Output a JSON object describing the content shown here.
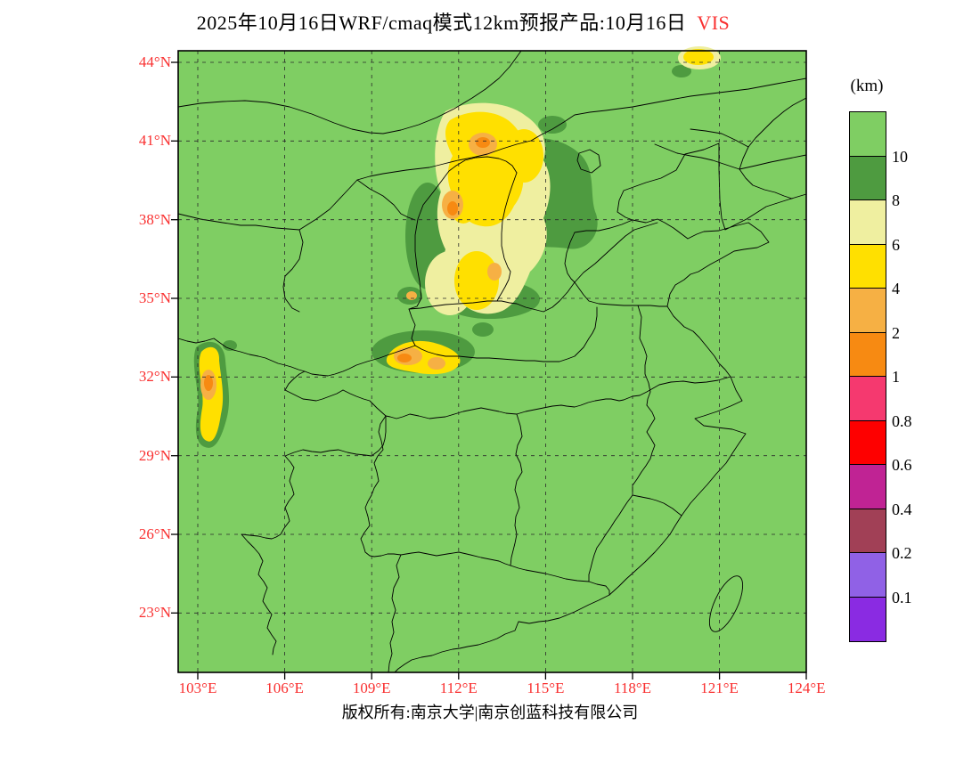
{
  "title": {
    "text": "2025年10月16日WRF/cmaq模式12km预报产品:10月16日",
    "highlight": "VIS"
  },
  "map": {
    "lat_labels": [
      "44°N",
      "41°N",
      "38°N",
      "35°N",
      "32°N",
      "29°N",
      "26°N",
      "23°N"
    ],
    "lon_labels": [
      "103°E",
      "106°E",
      "109°E",
      "112°E",
      "115°E",
      "118°E",
      "121°E",
      "124°E"
    ]
  },
  "legend": {
    "unit": "(km)",
    "tick_labels": [
      "10",
      "8",
      "6",
      "4",
      "2",
      "1",
      "0.8",
      "0.6",
      "0.4",
      "0.2",
      "0.1"
    ],
    "colors": [
      "#7FCE63",
      "#4E9B40",
      "#EFEFA0",
      "#FFE000",
      "#F6B044",
      "#F78A12",
      "#F5396F",
      "#FE0000",
      "#C02394",
      "#A14056",
      "#9061E6",
      "#8A2BE2"
    ]
  },
  "colors": {
    "axis_label": "#F93030"
  },
  "footer": "版权所有:南京大学|南京创蓝科技有限公司"
}
